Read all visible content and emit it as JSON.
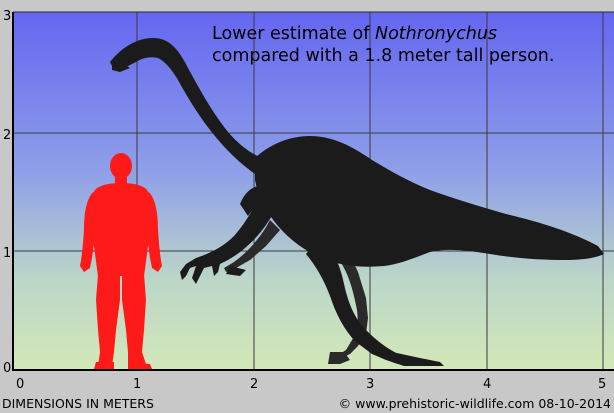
{
  "caption": {
    "line1_prefix": "Lower estimate of ",
    "line1_italic": "Nothronychus",
    "line2": "compared with a 1.8 meter tall person."
  },
  "axis": {
    "x_ticks": [
      "0",
      "1",
      "2",
      "3",
      "4",
      "5"
    ],
    "y_ticks": [
      "0",
      "1",
      "2",
      "3"
    ],
    "x_title": "DIMENSIONS IN METERS"
  },
  "credit": "© www.prehistoric-wildlife.com 08-10-2014",
  "colors": {
    "sky_top": "#6a6ef2",
    "sky_bottom": "#cfe4c0",
    "human": "#ff1a1a",
    "dinosaur": "#1a1a1a",
    "grid": "#444444"
  }
}
